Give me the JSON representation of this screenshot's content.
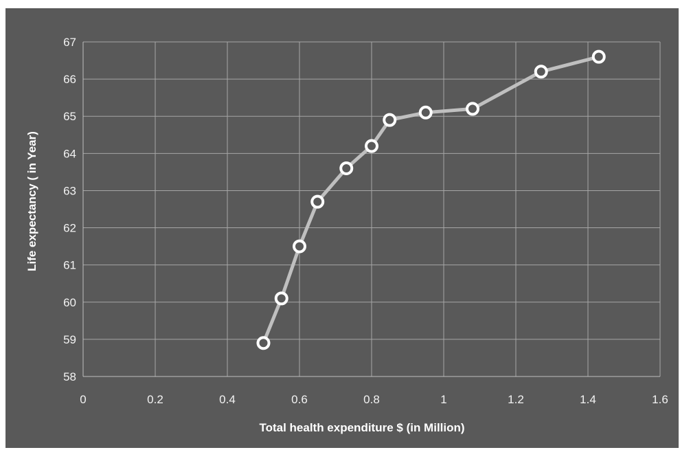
{
  "chart_data": {
    "type": "line",
    "xlabel": "Total health expenditure $ (in Million)",
    "ylabel": "Life expectancy ( in Year)",
    "xlim": [
      0,
      1.6
    ],
    "ylim": [
      58,
      67
    ],
    "x_ticks": [
      "0",
      "0.2",
      "0.4",
      "0.6",
      "0.8",
      "1",
      "1.2",
      "1.4",
      "1.6"
    ],
    "y_ticks": [
      "58",
      "59",
      "60",
      "61",
      "62",
      "63",
      "64",
      "65",
      "66",
      "67"
    ],
    "grid": true,
    "legend": "none",
    "colors": {
      "background": "#595959",
      "line": "#bfbfbf",
      "marker_stroke": "#ffffff",
      "grid": "#a6a6a6",
      "text": "#f2f2f2"
    },
    "series": [
      {
        "x": [
          0.5,
          0.55,
          0.6,
          0.65,
          0.73,
          0.8,
          0.85,
          0.95,
          1.08,
          1.27,
          1.43
        ],
        "y": [
          58.9,
          60.1,
          61.5,
          62.7,
          63.6,
          64.2,
          64.9,
          65.1,
          65.2,
          66.2,
          66.6
        ]
      }
    ]
  }
}
